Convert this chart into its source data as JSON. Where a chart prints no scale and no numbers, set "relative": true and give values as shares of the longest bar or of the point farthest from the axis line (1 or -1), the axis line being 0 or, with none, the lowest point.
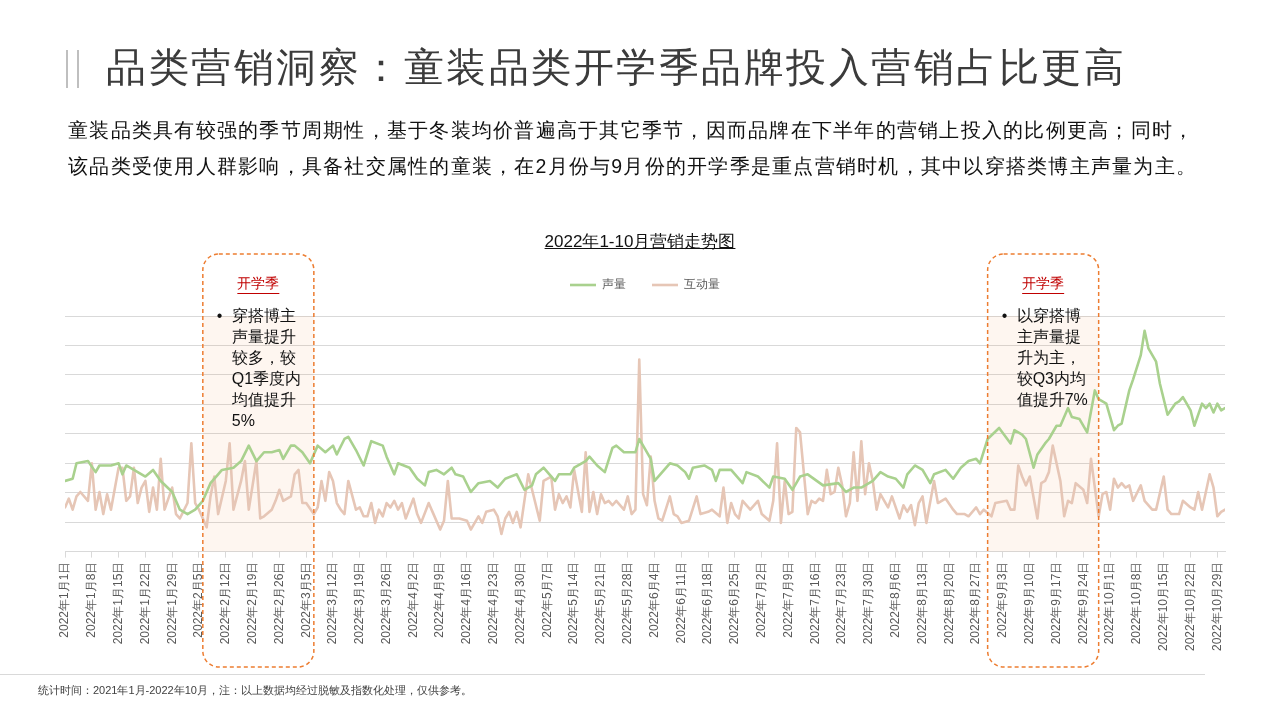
{
  "chart_data": {
    "type": "line",
    "title": "品类营销洞察：童装品类开学季品牌投入营销占比更高",
    "subtitle": "童装品类具有较强的季节周期性，基于冬装均价普遍高于其它季节，因而品牌在下半年的营销上投入的比例更高；同时，该品类受使用人群影响，具备社交属性的童装，在2月份与9月份的开学季是重点营销时机，其中以穿搭类博主声量为主。",
    "relative": true,
    "grid": "y",
    "legend": "top",
    "xlim": [
      "2022-01-01",
      "2022-10-31"
    ],
    "xticks": [
      {
        "value": "2022-01-01",
        "label": "2022年1月1日"
      },
      {
        "value": "2022-01-08",
        "label": "2022年1月8日"
      },
      {
        "value": "2022-01-15",
        "label": "2022年1月15日"
      },
      {
        "value": "2022-01-22",
        "label": "2022年1月22日"
      },
      {
        "value": "2022-01-29",
        "label": "2022年1月29日"
      },
      {
        "value": "2022-02-05",
        "label": "2022年2月5日"
      },
      {
        "value": "2022-02-12",
        "label": "2022年2月12日"
      },
      {
        "value": "2022-02-19",
        "label": "2022年2月19日"
      },
      {
        "value": "2022-02-26",
        "label": "2022年2月26日"
      },
      {
        "value": "2022-03-05",
        "label": "2022年3月5日"
      },
      {
        "value": "2022-03-12",
        "label": "2022年3月12日"
      },
      {
        "value": "2022-03-19",
        "label": "2022年3月19日"
      },
      {
        "value": "2022-03-26",
        "label": "2022年3月26日"
      },
      {
        "value": "2022-04-02",
        "label": "2022年4月2日"
      },
      {
        "value": "2022-04-09",
        "label": "2022年4月9日"
      },
      {
        "value": "2022-04-16",
        "label": "2022年4月16日"
      },
      {
        "value": "2022-04-23",
        "label": "2022年4月23日"
      },
      {
        "value": "2022-04-30",
        "label": "2022年4月30日"
      },
      {
        "value": "2022-05-07",
        "label": "2022年5月7日"
      },
      {
        "value": "2022-05-14",
        "label": "2022年5月14日"
      },
      {
        "value": "2022-05-21",
        "label": "2022年5月21日"
      },
      {
        "value": "2022-05-28",
        "label": "2022年5月28日"
      },
      {
        "value": "2022-06-04",
        "label": "2022年6月4日"
      },
      {
        "value": "2022-06-11",
        "label": "2022年6月11日"
      },
      {
        "value": "2022-06-18",
        "label": "2022年6月18日"
      },
      {
        "value": "2022-06-25",
        "label": "2022年6月25日"
      },
      {
        "value": "2022-07-02",
        "label": "2022年7月2日"
      },
      {
        "value": "2022-07-09",
        "label": "2022年7月9日"
      },
      {
        "value": "2022-07-16",
        "label": "2022年7月16日"
      },
      {
        "value": "2022-07-23",
        "label": "2022年7月23日"
      },
      {
        "value": "2022-07-30",
        "label": "2022年7月30日"
      },
      {
        "value": "2022-08-06",
        "label": "2022年8月6日"
      },
      {
        "value": "2022-08-13",
        "label": "2022年8月13日"
      },
      {
        "value": "2022-08-20",
        "label": "2022年8月20日"
      },
      {
        "value": "2022-08-27",
        "label": "2022年8月27日"
      },
      {
        "value": "2022-09-03",
        "label": "2022年9月3日"
      },
      {
        "value": "2022-09-10",
        "label": "2022年9月10日"
      },
      {
        "value": "2022-09-17",
        "label": "2022年9月17日"
      },
      {
        "value": "2022-09-24",
        "label": "2022年9月24日"
      },
      {
        "value": "2022-10-01",
        "label": "2022年10月1日"
      },
      {
        "value": "2022-10-08",
        "label": "2022年10月8日"
      },
      {
        "value": "2022-10-15",
        "label": "2022年10月15日"
      },
      {
        "value": "2022-10-22",
        "label": "2022年10月22日"
      },
      {
        "value": "2022-10-29",
        "label": "2022年10月29日"
      }
    ],
    "series": [
      {
        "name": "声量",
        "color": "#a9d18e",
        "x": [
          "2022-01-01",
          "2022-01-03",
          "2022-01-04",
          "2022-01-07",
          "2022-01-09",
          "2022-01-10",
          "2022-01-13",
          "2022-01-15",
          "2022-01-16",
          "2022-01-17",
          "2022-01-22",
          "2022-01-24",
          "2022-01-26",
          "2022-01-29",
          "2022-01-31",
          "2022-02-02",
          "2022-02-04",
          "2022-02-06",
          "2022-02-08",
          "2022-02-10",
          "2022-02-11",
          "2022-02-14",
          "2022-02-16",
          "2022-02-18",
          "2022-02-20",
          "2022-02-22",
          "2022-02-24",
          "2022-02-26",
          "2022-02-27",
          "2022-03-01",
          "2022-03-02",
          "2022-03-04",
          "2022-03-06",
          "2022-03-08",
          "2022-03-10",
          "2022-03-12",
          "2022-03-13",
          "2022-03-15",
          "2022-03-16",
          "2022-03-18",
          "2022-03-20",
          "2022-03-22",
          "2022-03-25",
          "2022-03-26",
          "2022-03-28",
          "2022-03-29",
          "2022-04-01",
          "2022-04-03",
          "2022-04-05",
          "2022-04-06",
          "2022-04-08",
          "2022-04-10",
          "2022-04-12",
          "2022-04-13",
          "2022-04-15",
          "2022-04-17",
          "2022-04-19",
          "2022-04-22",
          "2022-04-24",
          "2022-04-26",
          "2022-04-29",
          "2022-05-01",
          "2022-05-03",
          "2022-05-04",
          "2022-05-06",
          "2022-05-09",
          "2022-05-10",
          "2022-05-13",
          "2022-05-14",
          "2022-05-17",
          "2022-05-18",
          "2022-05-20",
          "2022-05-22",
          "2022-05-24",
          "2022-05-25",
          "2022-05-27",
          "2022-05-30",
          "2022-05-31",
          "2022-06-01",
          "2022-06-03",
          "2022-06-04",
          "2022-06-06",
          "2022-06-08",
          "2022-06-10",
          "2022-06-12",
          "2022-06-13",
          "2022-06-14",
          "2022-06-17",
          "2022-06-19",
          "2022-06-20",
          "2022-06-21",
          "2022-06-24",
          "2022-06-27",
          "2022-06-28",
          "2022-07-01",
          "2022-07-04",
          "2022-07-05",
          "2022-07-08",
          "2022-07-10",
          "2022-07-12",
          "2022-07-14",
          "2022-07-18",
          "2022-07-22",
          "2022-07-24",
          "2022-07-26",
          "2022-07-28",
          "2022-07-31",
          "2022-08-02",
          "2022-08-04",
          "2022-08-06",
          "2022-08-08",
          "2022-08-09",
          "2022-08-11",
          "2022-08-13",
          "2022-08-15",
          "2022-08-16",
          "2022-08-19",
          "2022-08-21",
          "2022-08-23",
          "2022-08-25",
          "2022-08-27",
          "2022-08-28",
          "2022-08-30",
          "2022-09-02",
          "2022-09-05",
          "2022-09-06",
          "2022-09-08",
          "2022-09-09",
          "2022-09-11",
          "2022-09-12",
          "2022-09-14",
          "2022-09-15",
          "2022-09-17",
          "2022-09-18",
          "2022-09-20",
          "2022-09-21",
          "2022-09-23",
          "2022-09-25",
          "2022-09-27",
          "2022-09-28",
          "2022-09-30",
          "2022-10-02",
          "2022-10-03",
          "2022-10-04",
          "2022-10-06",
          "2022-10-07",
          "2022-10-09",
          "2022-10-10",
          "2022-10-11",
          "2022-10-13",
          "2022-10-14",
          "2022-10-16",
          "2022-10-18",
          "2022-10-19",
          "2022-10-20",
          "2022-10-21",
          "2022-10-22",
          "2022-10-23",
          "2022-10-25",
          "2022-10-26",
          "2022-10-27",
          "2022-10-28",
          "2022-10-29",
          "2022-10-30",
          "2022-10-31"
        ],
        "values": [
          0.32,
          0.33,
          0.4,
          0.41,
          0.36,
          0.39,
          0.39,
          0.4,
          0.35,
          0.39,
          0.34,
          0.37,
          0.32,
          0.27,
          0.19,
          0.17,
          0.19,
          0.23,
          0.31,
          0.35,
          0.37,
          0.38,
          0.41,
          0.48,
          0.41,
          0.45,
          0.45,
          0.46,
          0.42,
          0.48,
          0.48,
          0.45,
          0.4,
          0.48,
          0.45,
          0.48,
          0.44,
          0.51,
          0.52,
          0.46,
          0.39,
          0.5,
          0.48,
          0.43,
          0.35,
          0.4,
          0.38,
          0.33,
          0.3,
          0.36,
          0.37,
          0.35,
          0.38,
          0.35,
          0.34,
          0.27,
          0.31,
          0.32,
          0.29,
          0.33,
          0.35,
          0.28,
          0.3,
          0.35,
          0.38,
          0.32,
          0.35,
          0.35,
          0.38,
          0.41,
          0.43,
          0.39,
          0.36,
          0.47,
          0.48,
          0.45,
          0.45,
          0.51,
          0.48,
          0.42,
          0.32,
          0.36,
          0.4,
          0.39,
          0.36,
          0.33,
          0.38,
          0.39,
          0.37,
          0.32,
          0.37,
          0.37,
          0.31,
          0.36,
          0.34,
          0.29,
          0.34,
          0.33,
          0.28,
          0.34,
          0.35,
          0.3,
          0.31,
          0.27,
          0.29,
          0.29,
          0.32,
          0.36,
          0.34,
          0.33,
          0.29,
          0.35,
          0.39,
          0.37,
          0.31,
          0.35,
          0.37,
          0.33,
          0.38,
          0.41,
          0.42,
          0.4,
          0.51,
          0.56,
          0.49,
          0.55,
          0.53,
          0.51,
          0.38,
          0.44,
          0.49,
          0.51,
          0.57,
          0.57,
          0.65,
          0.61,
          0.6,
          0.54,
          0.73,
          0.69,
          0.67,
          0.55,
          0.57,
          0.58,
          0.73,
          0.78,
          0.89,
          1,
          0.92,
          0.86,
          0.76,
          0.62,
          0.67,
          0.68,
          0.7,
          0.67,
          0.64,
          0.57,
          0.67,
          0.65,
          0.67,
          0.63,
          0.67,
          0.64,
          0.65
        ]
      },
      {
        "name": "互动量",
        "color": "#e6c6b6",
        "x": [
          "2022-01-01",
          "2022-01-02",
          "2022-01-03",
          "2022-01-04",
          "2022-01-05",
          "2022-01-07",
          "2022-01-08",
          "2022-01-09",
          "2022-01-10",
          "2022-01-11",
          "2022-01-12",
          "2022-01-13",
          "2022-01-15",
          "2022-01-16",
          "2022-01-17",
          "2022-01-18",
          "2022-01-19",
          "2022-01-20",
          "2022-01-21",
          "2022-01-22",
          "2022-01-23",
          "2022-01-24",
          "2022-01-25",
          "2022-01-26",
          "2022-01-27",
          "2022-01-29",
          "2022-01-30",
          "2022-01-31",
          "2022-02-02",
          "2022-02-03",
          "2022-02-04",
          "2022-02-05",
          "2022-02-07",
          "2022-02-08",
          "2022-02-09",
          "2022-02-10",
          "2022-02-12",
          "2022-02-13",
          "2022-02-14",
          "2022-02-16",
          "2022-02-17",
          "2022-02-18",
          "2022-02-20",
          "2022-02-21",
          "2022-02-22",
          "2022-02-24",
          "2022-02-25",
          "2022-02-26",
          "2022-02-27",
          "2022-03-01",
          "2022-03-02",
          "2022-03-03",
          "2022-03-04",
          "2022-03-05",
          "2022-03-07",
          "2022-03-08",
          "2022-03-09",
          "2022-03-10",
          "2022-03-11",
          "2022-03-12",
          "2022-03-13",
          "2022-03-14",
          "2022-03-15",
          "2022-03-16",
          "2022-03-18",
          "2022-03-19",
          "2022-03-20",
          "2022-03-21",
          "2022-03-22",
          "2022-03-23",
          "2022-03-24",
          "2022-03-25",
          "2022-03-26",
          "2022-03-27",
          "2022-03-28",
          "2022-03-29",
          "2022-03-30",
          "2022-03-31",
          "2022-04-02",
          "2022-04-03",
          "2022-04-04",
          "2022-04-06",
          "2022-04-07",
          "2022-04-09",
          "2022-04-10",
          "2022-04-11",
          "2022-04-12",
          "2022-04-14",
          "2022-04-16",
          "2022-04-17",
          "2022-04-19",
          "2022-04-20",
          "2022-04-21",
          "2022-04-23",
          "2022-04-24",
          "2022-04-25",
          "2022-04-26",
          "2022-04-27",
          "2022-04-28",
          "2022-04-29",
          "2022-04-30",
          "2022-05-02",
          "2022-05-03",
          "2022-05-04",
          "2022-05-05",
          "2022-05-06",
          "2022-05-08",
          "2022-05-09",
          "2022-05-10",
          "2022-05-11",
          "2022-05-12",
          "2022-05-13",
          "2022-05-14",
          "2022-05-16",
          "2022-05-17",
          "2022-05-18",
          "2022-05-19",
          "2022-05-20",
          "2022-05-21",
          "2022-05-22",
          "2022-05-23",
          "2022-05-24",
          "2022-05-25",
          "2022-05-27",
          "2022-05-28",
          "2022-05-29",
          "2022-05-30",
          "2022-05-31",
          "2022-06-01",
          "2022-06-02",
          "2022-06-03",
          "2022-06-04",
          "2022-06-05",
          "2022-06-06",
          "2022-06-08",
          "2022-06-09",
          "2022-06-10",
          "2022-06-11",
          "2022-06-13",
          "2022-06-15",
          "2022-06-16",
          "2022-06-18",
          "2022-06-19",
          "2022-06-21",
          "2022-06-22",
          "2022-06-23",
          "2022-06-24",
          "2022-06-25",
          "2022-06-26",
          "2022-06-27",
          "2022-06-29",
          "2022-07-01",
          "2022-07-02",
          "2022-07-04",
          "2022-07-05",
          "2022-07-06",
          "2022-07-07",
          "2022-07-08",
          "2022-07-09",
          "2022-07-10",
          "2022-07-11",
          "2022-07-12",
          "2022-07-14",
          "2022-07-15",
          "2022-07-16",
          "2022-07-17",
          "2022-07-18",
          "2022-07-19",
          "2022-07-20",
          "2022-07-21",
          "2022-07-22",
          "2022-07-23",
          "2022-07-24",
          "2022-07-25",
          "2022-07-26",
          "2022-07-27",
          "2022-07-28",
          "2022-07-29",
          "2022-07-30",
          "2022-07-31",
          "2022-08-01",
          "2022-08-02",
          "2022-08-03",
          "2022-08-04",
          "2022-08-05",
          "2022-08-07",
          "2022-08-08",
          "2022-08-09",
          "2022-08-10",
          "2022-08-11",
          "2022-08-12",
          "2022-08-13",
          "2022-08-14",
          "2022-08-16",
          "2022-08-17",
          "2022-08-18",
          "2022-08-19",
          "2022-08-21",
          "2022-08-22",
          "2022-08-24",
          "2022-08-25",
          "2022-08-27",
          "2022-08-28",
          "2022-08-29",
          "2022-08-31",
          "2022-09-01",
          "2022-09-04",
          "2022-09-05",
          "2022-09-06",
          "2022-09-07",
          "2022-09-08",
          "2022-09-09",
          "2022-09-10",
          "2022-09-12",
          "2022-09-13",
          "2022-09-14",
          "2022-09-15",
          "2022-09-16",
          "2022-09-18",
          "2022-09-19",
          "2022-09-20",
          "2022-09-21",
          "2022-09-22",
          "2022-09-24",
          "2022-09-25",
          "2022-09-26",
          "2022-09-28",
          "2022-09-29",
          "2022-09-30",
          "2022-10-01",
          "2022-10-02",
          "2022-10-03",
          "2022-10-04",
          "2022-10-05",
          "2022-10-06",
          "2022-10-07",
          "2022-10-09",
          "2022-10-10",
          "2022-10-12",
          "2022-10-13",
          "2022-10-15",
          "2022-10-16",
          "2022-10-17",
          "2022-10-19",
          "2022-10-20",
          "2022-10-22",
          "2022-10-23",
          "2022-10-24",
          "2022-10-25",
          "2022-10-27",
          "2022-10-28",
          "2022-10-29",
          "2022-10-30",
          "2022-10-31"
        ],
        "values": [
          0.2,
          0.24,
          0.19,
          0.25,
          0.27,
          0.23,
          0.4,
          0.19,
          0.27,
          0.17,
          0.26,
          0.19,
          0.38,
          0.38,
          0.23,
          0.25,
          0.38,
          0.22,
          0.29,
          0.32,
          0.18,
          0.29,
          0.19,
          0.42,
          0.19,
          0.29,
          0.17,
          0.15,
          0.22,
          0.49,
          0.22,
          0.19,
          0.11,
          0.25,
          0.34,
          0.17,
          0.32,
          0.49,
          0.19,
          0.32,
          0.41,
          0.19,
          0.41,
          0.15,
          0.16,
          0.19,
          0.23,
          0.28,
          0.23,
          0.25,
          0.35,
          0.37,
          0.22,
          0.22,
          0.17,
          0.2,
          0.32,
          0.23,
          0.36,
          0.32,
          0.22,
          0.19,
          0.17,
          0.32,
          0.19,
          0.2,
          0.16,
          0.16,
          0.22,
          0.13,
          0.19,
          0.16,
          0.22,
          0.2,
          0.23,
          0.19,
          0.22,
          0.15,
          0.24,
          0.17,
          0.13,
          0.22,
          0.18,
          0.1,
          0.14,
          0.32,
          0.15,
          0.15,
          0.14,
          0.1,
          0.16,
          0.13,
          0.18,
          0.19,
          0.16,
          0.08,
          0.15,
          0.18,
          0.13,
          0.18,
          0.11,
          0.35,
          0.28,
          0.21,
          0.14,
          0.32,
          0.34,
          0.19,
          0.26,
          0.22,
          0.25,
          0.2,
          0.37,
          0.18,
          0.45,
          0.18,
          0.27,
          0.17,
          0.26,
          0.22,
          0.23,
          0.21,
          0.23,
          0.19,
          0.25,
          0.17,
          0.19,
          0.87,
          0.26,
          0.21,
          0.43,
          0.23,
          0.15,
          0.14,
          0.25,
          0.17,
          0.16,
          0.13,
          0.14,
          0.25,
          0.17,
          0.18,
          0.19,
          0.16,
          0.29,
          0.13,
          0.22,
          0.17,
          0.15,
          0.23,
          0.19,
          0.23,
          0.17,
          0.14,
          0.23,
          0.49,
          0.13,
          0.32,
          0.17,
          0.18,
          0.56,
          0.54,
          0.17,
          0.23,
          0.22,
          0.24,
          0.23,
          0.37,
          0.26,
          0.27,
          0.38,
          0.3,
          0.16,
          0.22,
          0.45,
          0.23,
          0.5,
          0.26,
          0.4,
          0.32,
          0.19,
          0.26,
          0.23,
          0.2,
          0.25,
          0.15,
          0.21,
          0.18,
          0.21,
          0.12,
          0.22,
          0.25,
          0.13,
          0.32,
          0.22,
          0.23,
          0.24,
          0.19,
          0.17,
          0.17,
          0.16,
          0.2,
          0.17,
          0.19,
          0.16,
          0.22,
          0.23,
          0.19,
          0.19,
          0.39,
          0.34,
          0.3,
          0.34,
          0.15,
          0.31,
          0.32,
          0.36,
          0.48,
          0.32,
          0.16,
          0.23,
          0.22,
          0.31,
          0.28,
          0.22,
          0.42,
          0.16,
          0.26,
          0.27,
          0.19,
          0.33,
          0.29,
          0.31,
          0.29,
          0.3,
          0.23,
          0.3,
          0.23,
          0.19,
          0.19,
          0.34,
          0.19,
          0.17,
          0.17,
          0.23,
          0.2,
          0.19,
          0.27,
          0.19,
          0.35,
          0.29,
          0.16,
          0.18,
          0.19
        ]
      }
    ],
    "bands": [
      {
        "axis": "x",
        "from": "2022-02-06",
        "to": "2022-03-07",
        "label": "开学季",
        "color": "#ed7d31"
      },
      {
        "axis": "x",
        "from": "2022-08-30",
        "to": "2022-09-28",
        "label": "开学季",
        "color": "#ed7d31"
      }
    ],
    "annotations": [
      "2022年1-10月营销走势图",
      "• 穿搭博主声量提升较多，较Q1季度内均值提升5%",
      "• 以穿搭博主声量提升为主，较Q3内均值提升7%",
      "统计时间：2021年1月-2022年10月，注：以上数据均经过脱敏及指数化处理，仅供参考。"
    ]
  }
}
